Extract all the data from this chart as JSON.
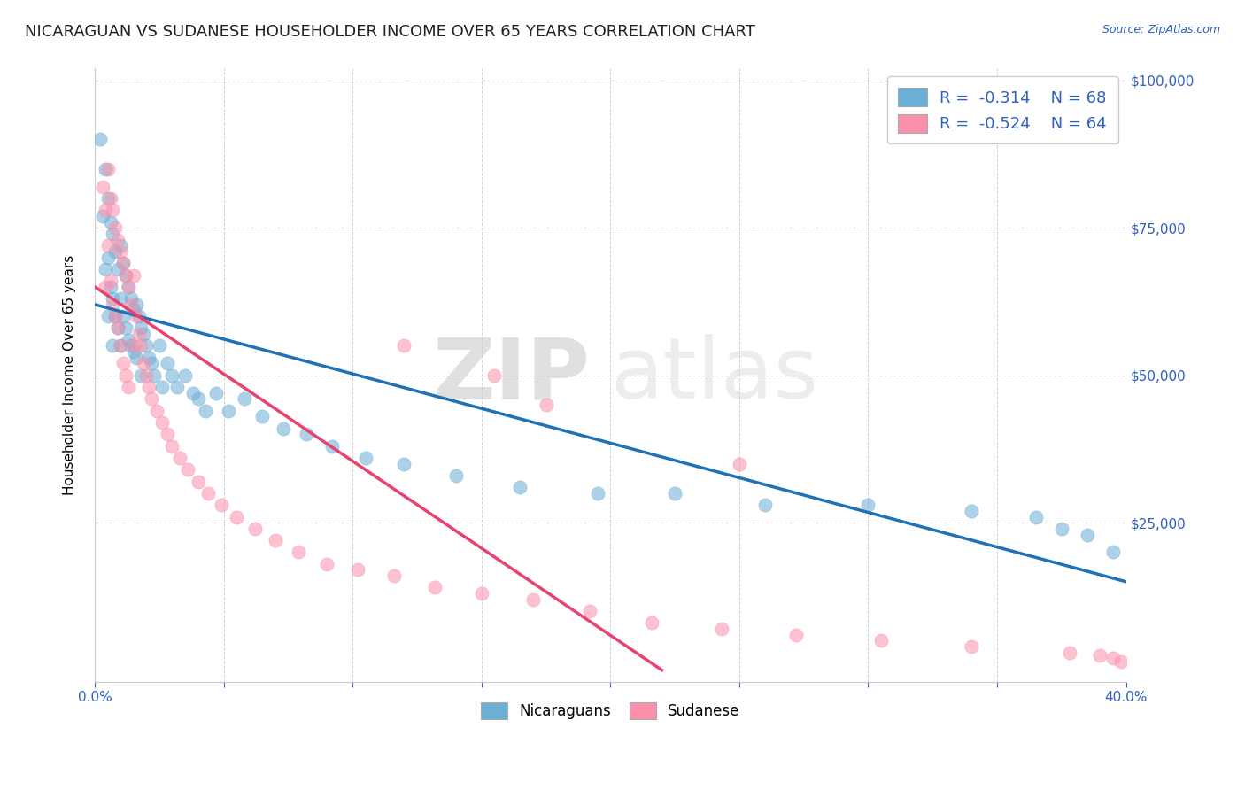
{
  "title": "NICARAGUAN VS SUDANESE HOUSEHOLDER INCOME OVER 65 YEARS CORRELATION CHART",
  "source": "Source: ZipAtlas.com",
  "ylabel": "Householder Income Over 65 years",
  "xlim": [
    0.0,
    0.4
  ],
  "ylim": [
    0,
    100000
  ],
  "xtick_labels": [
    "0.0%",
    "",
    "",
    "",
    "",
    "",
    "",
    "",
    "40.0%"
  ],
  "xtick_values": [
    0.0,
    0.05,
    0.1,
    0.15,
    0.2,
    0.25,
    0.3,
    0.35,
    0.4
  ],
  "ytick_labels": [
    "$25,000",
    "$50,000",
    "$75,000",
    "$100,000"
  ],
  "ytick_values": [
    25000,
    50000,
    75000,
    100000
  ],
  "blue_color": "#6baed6",
  "pink_color": "#fc8faa",
  "blue_line_color": "#2171b5",
  "pink_line_color": "#e8436e",
  "legend_text_color": "#3060c0",
  "r_blue": -0.314,
  "n_blue": 68,
  "r_pink": -0.524,
  "n_pink": 64,
  "blue_line_x0": 0.0,
  "blue_line_y0": 62000,
  "blue_line_x1": 0.4,
  "blue_line_y1": 15000,
  "pink_line_x0": 0.0,
  "pink_line_y0": 65000,
  "pink_line_x1": 0.22,
  "pink_line_y1": 0,
  "blue_scatter_x": [
    0.002,
    0.003,
    0.004,
    0.004,
    0.005,
    0.005,
    0.005,
    0.006,
    0.006,
    0.007,
    0.007,
    0.007,
    0.008,
    0.008,
    0.009,
    0.009,
    0.01,
    0.01,
    0.01,
    0.011,
    0.011,
    0.012,
    0.012,
    0.013,
    0.013,
    0.014,
    0.014,
    0.015,
    0.015,
    0.016,
    0.016,
    0.017,
    0.018,
    0.018,
    0.019,
    0.02,
    0.021,
    0.022,
    0.023,
    0.025,
    0.026,
    0.028,
    0.03,
    0.032,
    0.035,
    0.038,
    0.04,
    0.043,
    0.047,
    0.052,
    0.058,
    0.065,
    0.073,
    0.082,
    0.092,
    0.105,
    0.12,
    0.14,
    0.165,
    0.195,
    0.225,
    0.26,
    0.3,
    0.34,
    0.365,
    0.375,
    0.385,
    0.395
  ],
  "blue_scatter_y": [
    90000,
    77000,
    85000,
    68000,
    80000,
    70000,
    60000,
    76000,
    65000,
    74000,
    63000,
    55000,
    71000,
    60000,
    68000,
    58000,
    72000,
    63000,
    55000,
    69000,
    60000,
    67000,
    58000,
    65000,
    56000,
    63000,
    55000,
    61000,
    54000,
    62000,
    53000,
    60000,
    58000,
    50000,
    57000,
    55000,
    53000,
    52000,
    50000,
    55000,
    48000,
    52000,
    50000,
    48000,
    50000,
    47000,
    46000,
    44000,
    47000,
    44000,
    46000,
    43000,
    41000,
    40000,
    38000,
    36000,
    35000,
    33000,
    31000,
    30000,
    30000,
    28000,
    28000,
    27000,
    26000,
    24000,
    23000,
    20000
  ],
  "pink_scatter_x": [
    0.003,
    0.004,
    0.004,
    0.005,
    0.005,
    0.006,
    0.006,
    0.007,
    0.007,
    0.008,
    0.008,
    0.009,
    0.009,
    0.01,
    0.01,
    0.011,
    0.011,
    0.012,
    0.012,
    0.013,
    0.013,
    0.014,
    0.015,
    0.015,
    0.016,
    0.017,
    0.018,
    0.019,
    0.02,
    0.021,
    0.022,
    0.024,
    0.026,
    0.028,
    0.03,
    0.033,
    0.036,
    0.04,
    0.044,
    0.049,
    0.055,
    0.062,
    0.07,
    0.079,
    0.09,
    0.102,
    0.116,
    0.132,
    0.15,
    0.17,
    0.192,
    0.216,
    0.243,
    0.272,
    0.305,
    0.34,
    0.378,
    0.39,
    0.395,
    0.398,
    0.155,
    0.175,
    0.12,
    0.25
  ],
  "pink_scatter_y": [
    82000,
    78000,
    65000,
    85000,
    72000,
    80000,
    66000,
    78000,
    62000,
    75000,
    60000,
    73000,
    58000,
    71000,
    55000,
    69000,
    52000,
    67000,
    50000,
    65000,
    48000,
    62000,
    67000,
    55000,
    60000,
    57000,
    55000,
    52000,
    50000,
    48000,
    46000,
    44000,
    42000,
    40000,
    38000,
    36000,
    34000,
    32000,
    30000,
    28000,
    26000,
    24000,
    22000,
    20000,
    18000,
    17000,
    16000,
    14000,
    13000,
    12000,
    10000,
    8000,
    7000,
    6000,
    5000,
    4000,
    3000,
    2500,
    2000,
    1500,
    50000,
    45000,
    55000,
    35000
  ],
  "watermark_zip": "ZIP",
  "watermark_atlas": "atlas",
  "background_color": "#ffffff",
  "grid_color": "#cccccc",
  "axis_color": "#3060c0",
  "title_fontsize": 13,
  "label_fontsize": 11,
  "tick_fontsize": 11
}
